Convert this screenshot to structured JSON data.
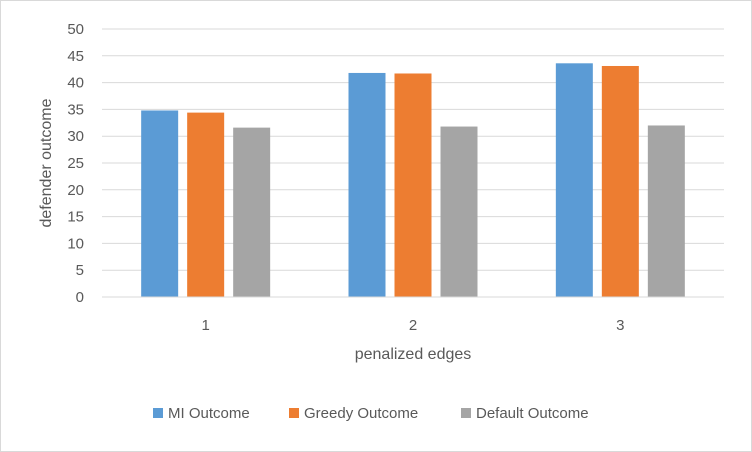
{
  "chart_data": {
    "type": "bar",
    "title": "",
    "xlabel": "penalized edges",
    "ylabel": "defender outcome",
    "categories": [
      "1",
      "2",
      "3"
    ],
    "ylim": [
      0,
      50
    ],
    "yticks": [
      0,
      5,
      10,
      15,
      20,
      25,
      30,
      35,
      40,
      45,
      50
    ],
    "grid": "horizontal",
    "legend_position": "bottom",
    "series": [
      {
        "name": "MI Outcome",
        "color": "#5b9bd5",
        "values": [
          34.8,
          41.8,
          43.6
        ]
      },
      {
        "name": "Greedy Outcome",
        "color": "#ed7d31",
        "values": [
          34.4,
          41.7,
          43.1
        ]
      },
      {
        "name": "Default Outcome",
        "color": "#a5a5a5",
        "values": [
          31.6,
          31.8,
          32.0
        ]
      }
    ]
  }
}
